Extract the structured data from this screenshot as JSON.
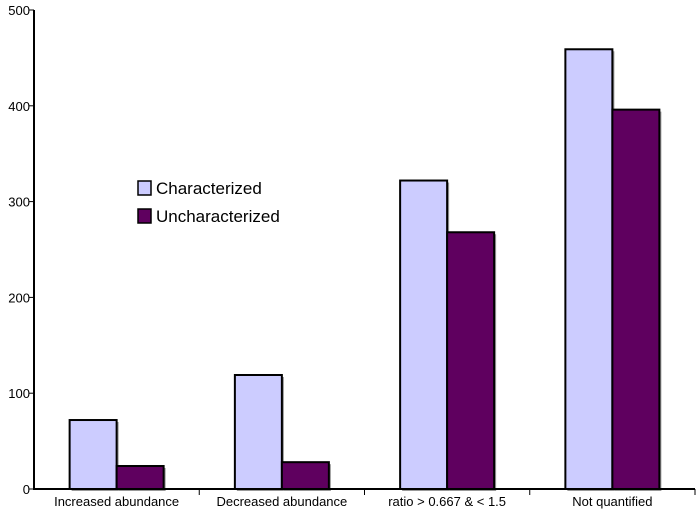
{
  "chart_data": {
    "type": "bar",
    "title": "",
    "xlabel": "",
    "ylabel": "",
    "categories": [
      "Increased abundance",
      "Decreased abundance",
      "ratio > 0.667 & < 1.5",
      "Not quantified"
    ],
    "series": [
      {
        "name": "Characterized",
        "values": [
          72,
          119,
          322,
          459
        ],
        "color": "#ccccff"
      },
      {
        "name": "Uncharacterized",
        "values": [
          24,
          28,
          268,
          396
        ],
        "color": "#5f005f"
      }
    ],
    "ylim": [
      0,
      500
    ],
    "yticks": [
      0,
      100,
      200,
      300,
      400,
      500
    ],
    "grid": false,
    "legend_position": "left-middle"
  }
}
